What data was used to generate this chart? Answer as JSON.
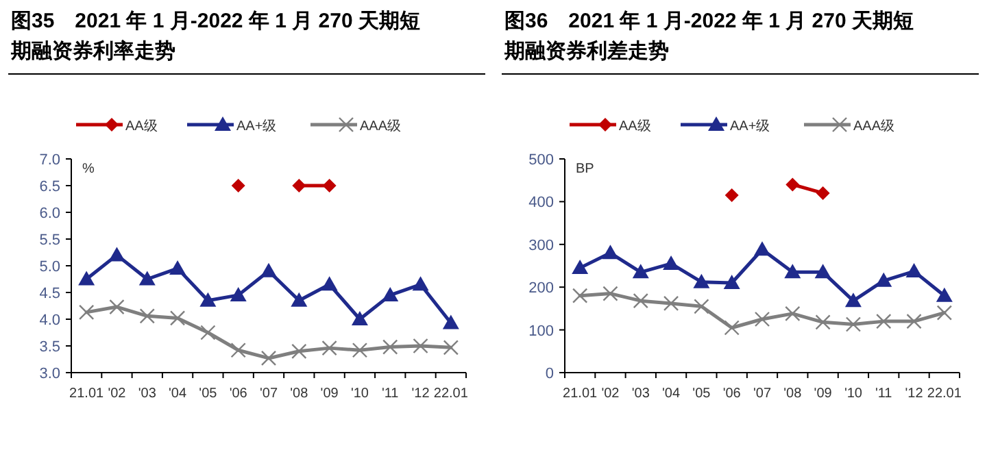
{
  "chart_data": [
    {
      "type": "line",
      "title": "图35　2021 年 1 月-2022 年 1 月 270 天期短期融资券利率走势",
      "ylabel": "%",
      "categories": [
        "21.01",
        "'02",
        "'03",
        "'04",
        "'05",
        "'06",
        "'07",
        "'08",
        "'09",
        "'10",
        "'11",
        "'12",
        "22.01"
      ],
      "series": [
        {
          "name": "AA级",
          "color": "#c00000",
          "marker": "diamond",
          "values": [
            null,
            null,
            null,
            null,
            null,
            6.5,
            null,
            6.5,
            6.5,
            null,
            null,
            null,
            null
          ]
        },
        {
          "name": "AA+级",
          "color": "#1f2a8c",
          "marker": "triangle",
          "values": [
            4.75,
            5.2,
            4.75,
            4.95,
            4.35,
            4.45,
            4.9,
            4.35,
            4.65,
            4.0,
            4.45,
            4.65,
            3.93
          ]
        },
        {
          "name": "AAA级",
          "color": "#7f7f7f",
          "marker": "cross",
          "values": [
            4.13,
            4.23,
            4.06,
            4.02,
            3.75,
            3.42,
            3.27,
            3.4,
            3.46,
            3.42,
            3.48,
            3.5,
            3.47
          ]
        }
      ],
      "ylim": [
        3,
        7
      ],
      "yticks": [
        {
          "value": 3,
          "label": "3.0"
        },
        {
          "value": 3.5,
          "label": "3.5"
        },
        {
          "value": 4,
          "label": "4.0"
        },
        {
          "value": 4.5,
          "label": "4.5"
        },
        {
          "value": 5,
          "label": "5.0"
        },
        {
          "value": 5.5,
          "label": "5.5"
        },
        {
          "value": 6,
          "label": "6.0"
        },
        {
          "value": 6.5,
          "label": "6.5"
        },
        {
          "value": 7,
          "label": "7.0"
        }
      ],
      "legend": "top",
      "grid": false
    },
    {
      "type": "line",
      "title": "图36　2021 年 1 月-2022 年 1 月 270 天期短期融资券利差走势",
      "ylabel": "BP",
      "categories": [
        "21.01",
        "'02",
        "'03",
        "'04",
        "'05",
        "'06",
        "'07",
        "'08",
        "'09",
        "'10",
        "'11",
        "'12",
        "22.01"
      ],
      "series": [
        {
          "name": "AA级",
          "color": "#c00000",
          "marker": "diamond",
          "values": [
            null,
            null,
            null,
            null,
            null,
            415,
            null,
            440,
            420,
            null,
            null,
            null,
            null
          ]
        },
        {
          "name": "AA+级",
          "color": "#1f2a8c",
          "marker": "triangle",
          "values": [
            245,
            280,
            235,
            255,
            212,
            210,
            288,
            235,
            235,
            168,
            215,
            237,
            180
          ]
        },
        {
          "name": "AAA级",
          "color": "#7f7f7f",
          "marker": "cross",
          "values": [
            180,
            185,
            168,
            162,
            155,
            105,
            125,
            138,
            118,
            113,
            120,
            120,
            140
          ]
        }
      ],
      "ylim": [
        0,
        500
      ],
      "yticks": [
        0,
        100,
        200,
        300,
        400,
        500
      ],
      "legend": "top",
      "grid": false
    }
  ]
}
